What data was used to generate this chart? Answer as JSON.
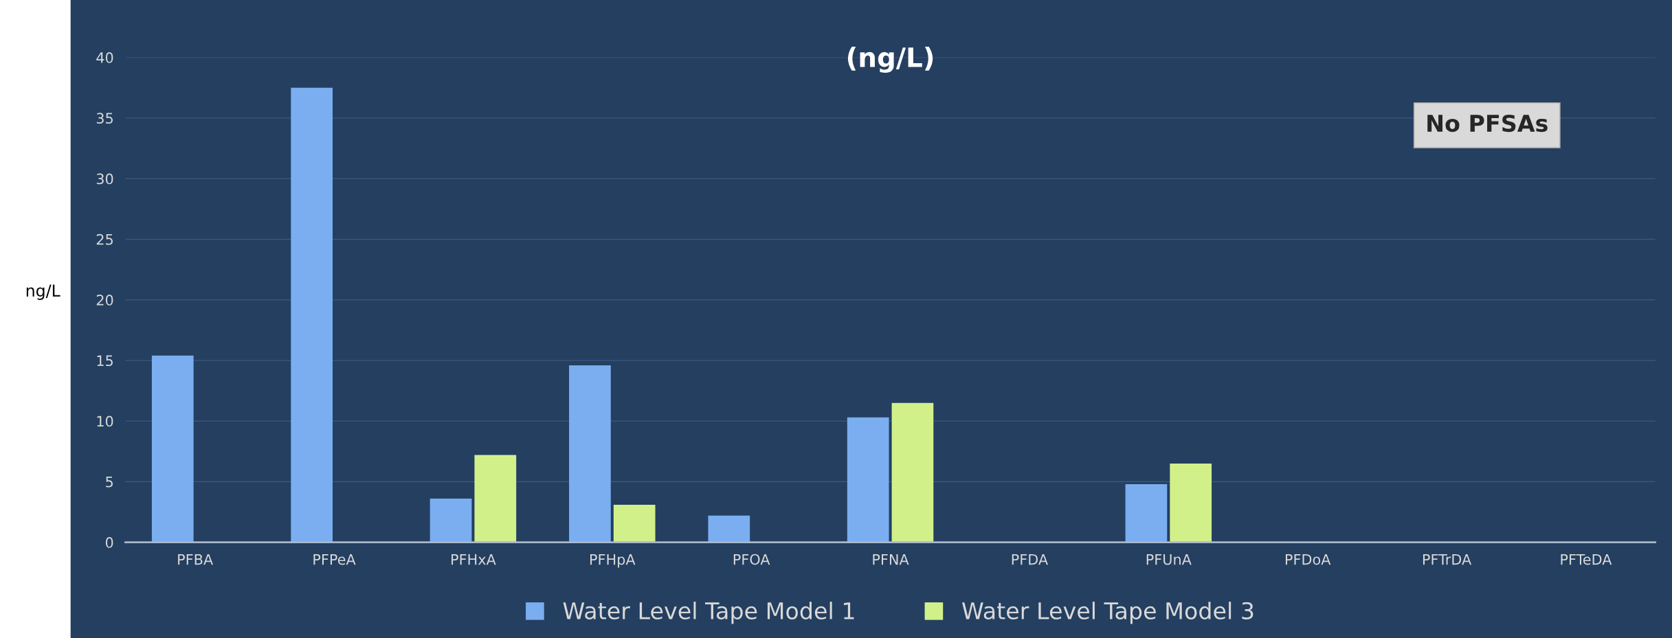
{
  "chart_data": {
    "type": "bar",
    "title": "(ng/L)",
    "ylabel": "ng/L",
    "categories": [
      "PFBA",
      "PFPeA",
      "PFHxA",
      "PFHpA",
      "PFOA",
      "PFNA",
      "PFDA",
      "PFUnA",
      "PFDoA",
      "PFTrDA",
      "PFTeDA"
    ],
    "series": [
      {
        "name": "Water Level Tape Model 1",
        "color": "#7aaef0",
        "values": [
          15.4,
          37.5,
          3.6,
          14.6,
          2.2,
          10.3,
          null,
          4.8,
          null,
          null,
          null
        ]
      },
      {
        "name": "Water Level Tape Model 3",
        "color": "#d2f08a",
        "values": [
          null,
          null,
          7.2,
          3.1,
          null,
          11.5,
          null,
          6.5,
          null,
          null,
          null
        ]
      }
    ],
    "ylim": [
      0,
      40
    ],
    "yticks": [
      0,
      5,
      10,
      15,
      20,
      25,
      30,
      35,
      40
    ],
    "grid": "y",
    "legend": "bottom",
    "annotations": [
      "No PFSAs"
    ]
  }
}
